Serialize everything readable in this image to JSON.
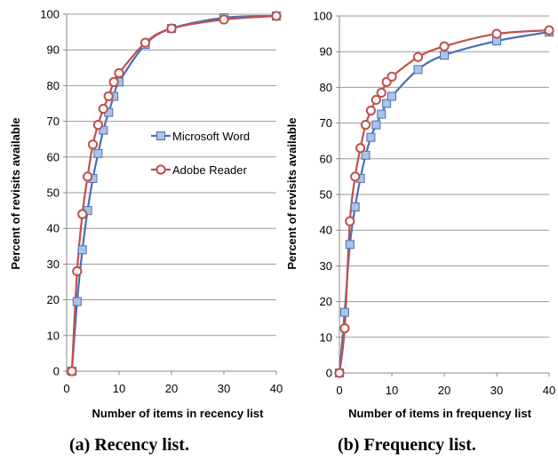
{
  "chart_data": [
    {
      "type": "line",
      "caption": "(a) Recency list.",
      "xlabel": "Number of items in recency list",
      "ylabel": "Percent of revisits available",
      "xlim": [
        0,
        40
      ],
      "ylim": [
        0,
        100
      ],
      "xticks": [
        0,
        10,
        20,
        30,
        40
      ],
      "yticks": [
        0,
        10,
        20,
        30,
        40,
        50,
        60,
        70,
        80,
        90,
        100
      ],
      "grid": "horizontal",
      "legend_position": "center-right",
      "series": [
        {
          "name": "Microsoft Word",
          "color": "#4a6fb5",
          "marker": "square",
          "marker_fill": "#a9c4e6",
          "x": [
            1,
            2,
            3,
            4,
            5,
            6,
            7,
            8,
            9,
            10,
            15,
            20,
            30,
            40
          ],
          "y": [
            0,
            19.5,
            34,
            45,
            54,
            61,
            67.5,
            72.5,
            77,
            81,
            91.5,
            96,
            99,
            99.5
          ]
        },
        {
          "name": "Adobe Reader",
          "color": "#c0504d",
          "marker": "circle",
          "marker_fill": "#ffffff",
          "x": [
            1,
            2,
            3,
            4,
            5,
            6,
            7,
            8,
            9,
            10,
            15,
            20,
            30,
            40
          ],
          "y": [
            0,
            28,
            44,
            54.5,
            63.5,
            69,
            73.5,
            77,
            81,
            83.5,
            92,
            96,
            98.5,
            99.5
          ]
        }
      ]
    },
    {
      "type": "line",
      "caption": "(b) Frequency list.",
      "xlabel": "Number of items in frequency list",
      "ylabel": "Percent of revisits available",
      "xlim": [
        0,
        40
      ],
      "ylim": [
        0,
        100
      ],
      "xticks": [
        0,
        10,
        20,
        30,
        40
      ],
      "yticks": [
        0,
        10,
        20,
        30,
        40,
        50,
        60,
        70,
        80,
        90,
        100
      ],
      "grid": "horizontal",
      "series": [
        {
          "name": "Microsoft Word",
          "color": "#4a6fb5",
          "marker": "square",
          "marker_fill": "#a9c4e6",
          "x": [
            0,
            1,
            2,
            3,
            4,
            5,
            6,
            7,
            8,
            9,
            10,
            15,
            20,
            30,
            40
          ],
          "y": [
            0,
            17,
            36,
            46.5,
            54.5,
            61,
            66,
            69.5,
            72.5,
            75.5,
            77.5,
            85,
            89,
            93,
            95.5
          ]
        },
        {
          "name": "Adobe Reader",
          "color": "#c0504d",
          "marker": "circle",
          "marker_fill": "#ffffff",
          "x": [
            0,
            1,
            2,
            3,
            4,
            5,
            6,
            7,
            8,
            9,
            10,
            15,
            20,
            30,
            40
          ],
          "y": [
            0,
            12.5,
            42.5,
            55,
            63,
            69.5,
            73.5,
            76.5,
            78.5,
            81.5,
            83,
            88.5,
            91.5,
            95,
            96
          ]
        }
      ]
    }
  ]
}
